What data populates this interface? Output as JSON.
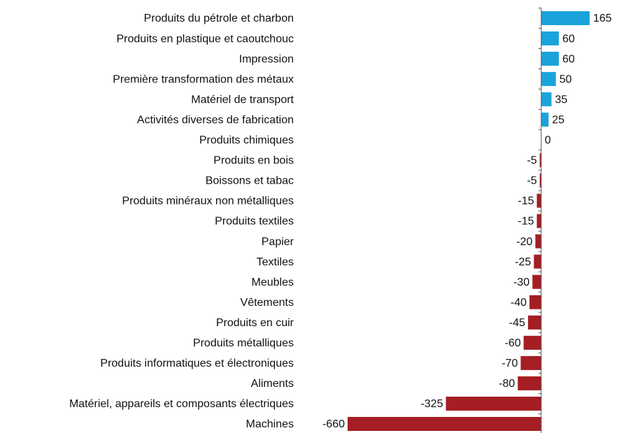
{
  "chart_data": {
    "type": "hbar",
    "categories": [
      "Produits du pétrole et charbon",
      "Produits en plastique et caoutchouc",
      "Impression",
      "Première transformation des métaux",
      "Matériel de transport",
      "Activités diverses de fabrication",
      "Produits chimiques",
      "Produits en bois",
      "Boissons et tabac",
      "Produits minéraux non métalliques",
      "Produits textiles",
      "Papier",
      "Textiles",
      "Meubles",
      "Vêtements",
      "Produits en cuir",
      "Produits métalliques",
      "Produits informatiques et électroniques",
      "Aliments",
      "Matériel, appareils et composants électriques",
      "Machines"
    ],
    "values": [
      165,
      60,
      60,
      50,
      35,
      25,
      0,
      -5,
      -5,
      -15,
      -15,
      -20,
      -25,
      -30,
      -40,
      -45,
      -60,
      -70,
      -80,
      -325,
      -660
    ],
    "xlim": [
      -660,
      165
    ],
    "positive_color": "#1aa3da",
    "negative_color": "#a51e23"
  }
}
